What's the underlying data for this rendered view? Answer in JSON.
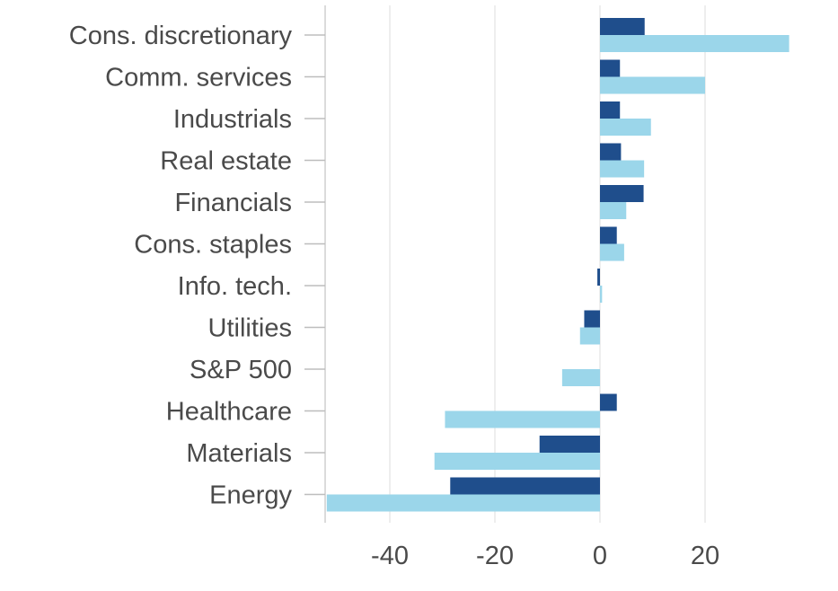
{
  "chart_data": {
    "type": "bar",
    "orientation": "horizontal",
    "categories": [
      "Cons. discretionary",
      "Comm. services",
      "Industrials",
      "Real estate",
      "Financials",
      "Cons. staples",
      "Info. tech.",
      "Utilities",
      "S&P 500",
      "Healthcare",
      "Materials",
      "Energy"
    ],
    "series": [
      {
        "color": "#1f4e8c",
        "values": [
          8.5,
          3.8,
          3.8,
          4.0,
          8.3,
          3.2,
          -0.5,
          -3.0,
          0,
          3.2,
          -11.5,
          -28.5
        ]
      },
      {
        "color": "#9bd6ea",
        "values": [
          36,
          20,
          9.7,
          8.4,
          5.0,
          4.6,
          0.4,
          -3.8,
          -7.2,
          -29.5,
          -31.5,
          -52
        ]
      }
    ],
    "xlim": [
      -52,
      40
    ],
    "xticks": [
      -40,
      -20,
      0,
      20
    ],
    "xtick_labels": [
      "-40",
      "-20",
      "0",
      "20"
    ],
    "grid": "vertical",
    "legend": "none"
  }
}
